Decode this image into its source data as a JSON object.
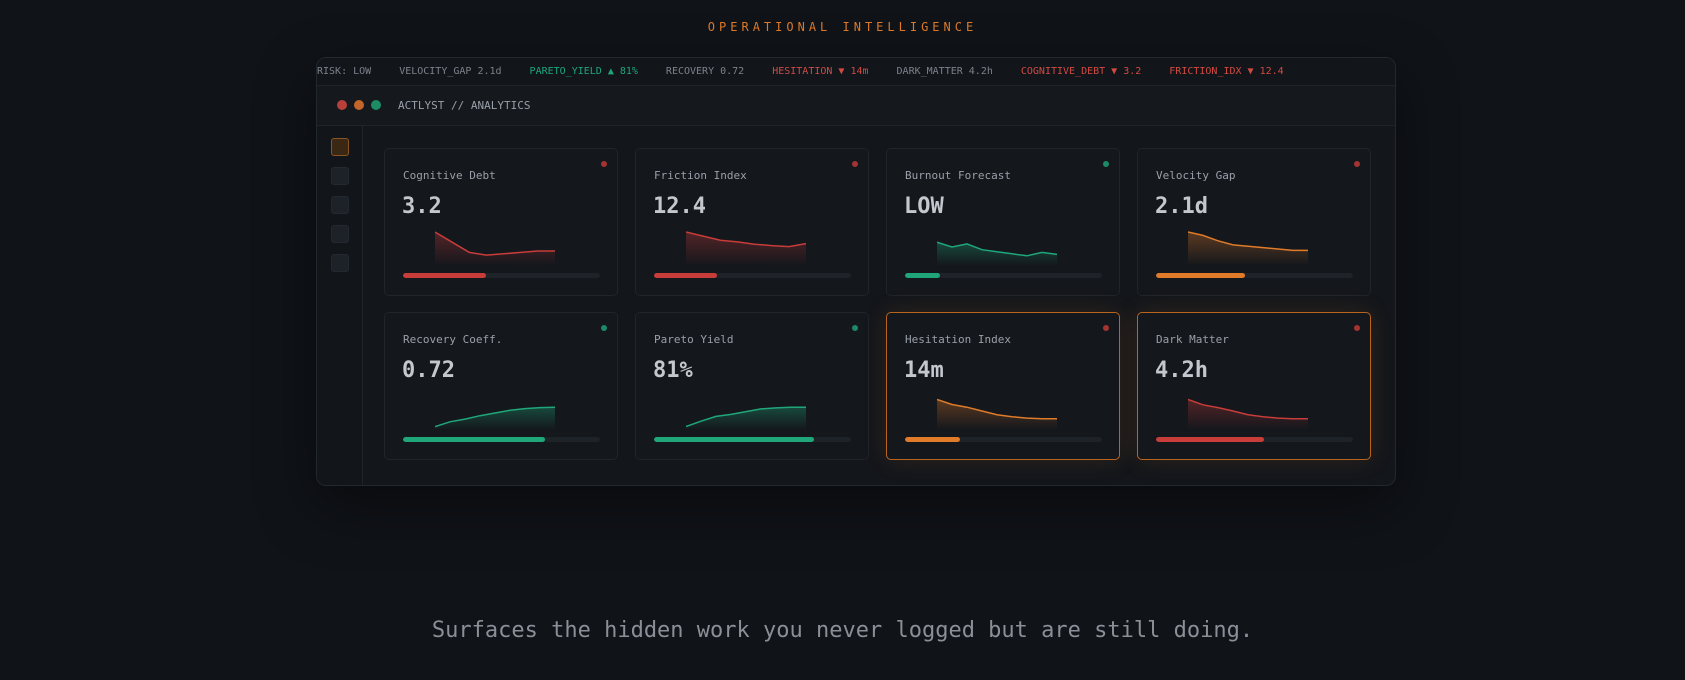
{
  "eyebrow": "OPERATIONAL INTELLIGENCE",
  "ticker": [
    {
      "text": "RISK: LOW",
      "tone": "neutral"
    },
    {
      "text": "VELOCITY_GAP 2.1d",
      "tone": "neutral"
    },
    {
      "text": "PARETO_YIELD ▲ 81%",
      "tone": "up"
    },
    {
      "text": "RECOVERY 0.72",
      "tone": "neutral"
    },
    {
      "text": "HESITATION ▼ 14m",
      "tone": "down"
    },
    {
      "text": "DARK_MATTER 4.2h",
      "tone": "neutral"
    },
    {
      "text": "COGNITIVE_DEBT ▼ 3.2",
      "tone": "down"
    },
    {
      "text": "FRICTION_IDX ▼ 12.4",
      "tone": "down"
    }
  ],
  "window": {
    "title": "ACTLYST // ANALYTICS"
  },
  "colors": {
    "red": "#c83c3a",
    "orange": "#e07b2a",
    "green": "#1fa77a",
    "accent": "#e07b2a"
  },
  "cards": [
    {
      "label": "Cognitive Debt",
      "value": "3.2",
      "color": "red",
      "status": "red",
      "progress": 0.42,
      "highlight": false,
      "trend": [
        10,
        7,
        4,
        3.2,
        3.6,
        4,
        4.4,
        4.4
      ]
    },
    {
      "label": "Friction Index",
      "value": "12.4",
      "color": "red",
      "status": "red",
      "progress": 0.32,
      "highlight": false,
      "trend": [
        10,
        8.8,
        7.6,
        7.1,
        6.4,
        6,
        5.7,
        6.6
      ]
    },
    {
      "label": "Burnout Forecast",
      "value": "LOW",
      "color": "green",
      "status": "green",
      "progress": 0.18,
      "highlight": false,
      "trend": [
        7,
        5.6,
        6.5,
        4.8,
        4.2,
        3.6,
        3,
        4,
        3.4
      ]
    },
    {
      "label": "Velocity Gap",
      "value": "2.1d",
      "color": "orange",
      "status": "red",
      "progress": 0.45,
      "highlight": false,
      "trend": [
        10,
        9,
        7.4,
        6.2,
        5.8,
        5.4,
        5,
        4.6,
        4.6
      ]
    },
    {
      "label": "Recovery Coeff.",
      "value": "0.72",
      "color": "green",
      "status": "green",
      "progress": 0.72,
      "highlight": false,
      "trend": [
        1,
        2.4,
        3.2,
        4.2,
        5,
        5.8,
        6.3,
        6.6,
        6.7
      ]
    },
    {
      "label": "Pareto Yield",
      "value": "81%",
      "color": "green",
      "status": "green",
      "progress": 0.81,
      "highlight": false,
      "trend": [
        1,
        2.6,
        4,
        4.6,
        5.4,
        6.2,
        6.5,
        6.7,
        6.7
      ]
    },
    {
      "label": "Hesitation Index",
      "value": "14m",
      "color": "orange",
      "status": "red",
      "progress": 0.28,
      "highlight": true,
      "trend": [
        9,
        7.5,
        6.7,
        5.6,
        4.5,
        3.9,
        3.5,
        3.3,
        3.3
      ]
    },
    {
      "label": "Dark Matter",
      "value": "4.2h",
      "color": "red",
      "status": "red",
      "progress": 0.55,
      "highlight": true,
      "trend": [
        9,
        7.4,
        6.6,
        5.6,
        4.5,
        3.9,
        3.5,
        3.3,
        3.3
      ]
    }
  ],
  "sidebar": {
    "items": [
      "dashboard",
      "item-2",
      "item-3",
      "item-4",
      "item-5"
    ]
  },
  "tagline": "Surfaces the hidden work you never logged but are still doing."
}
